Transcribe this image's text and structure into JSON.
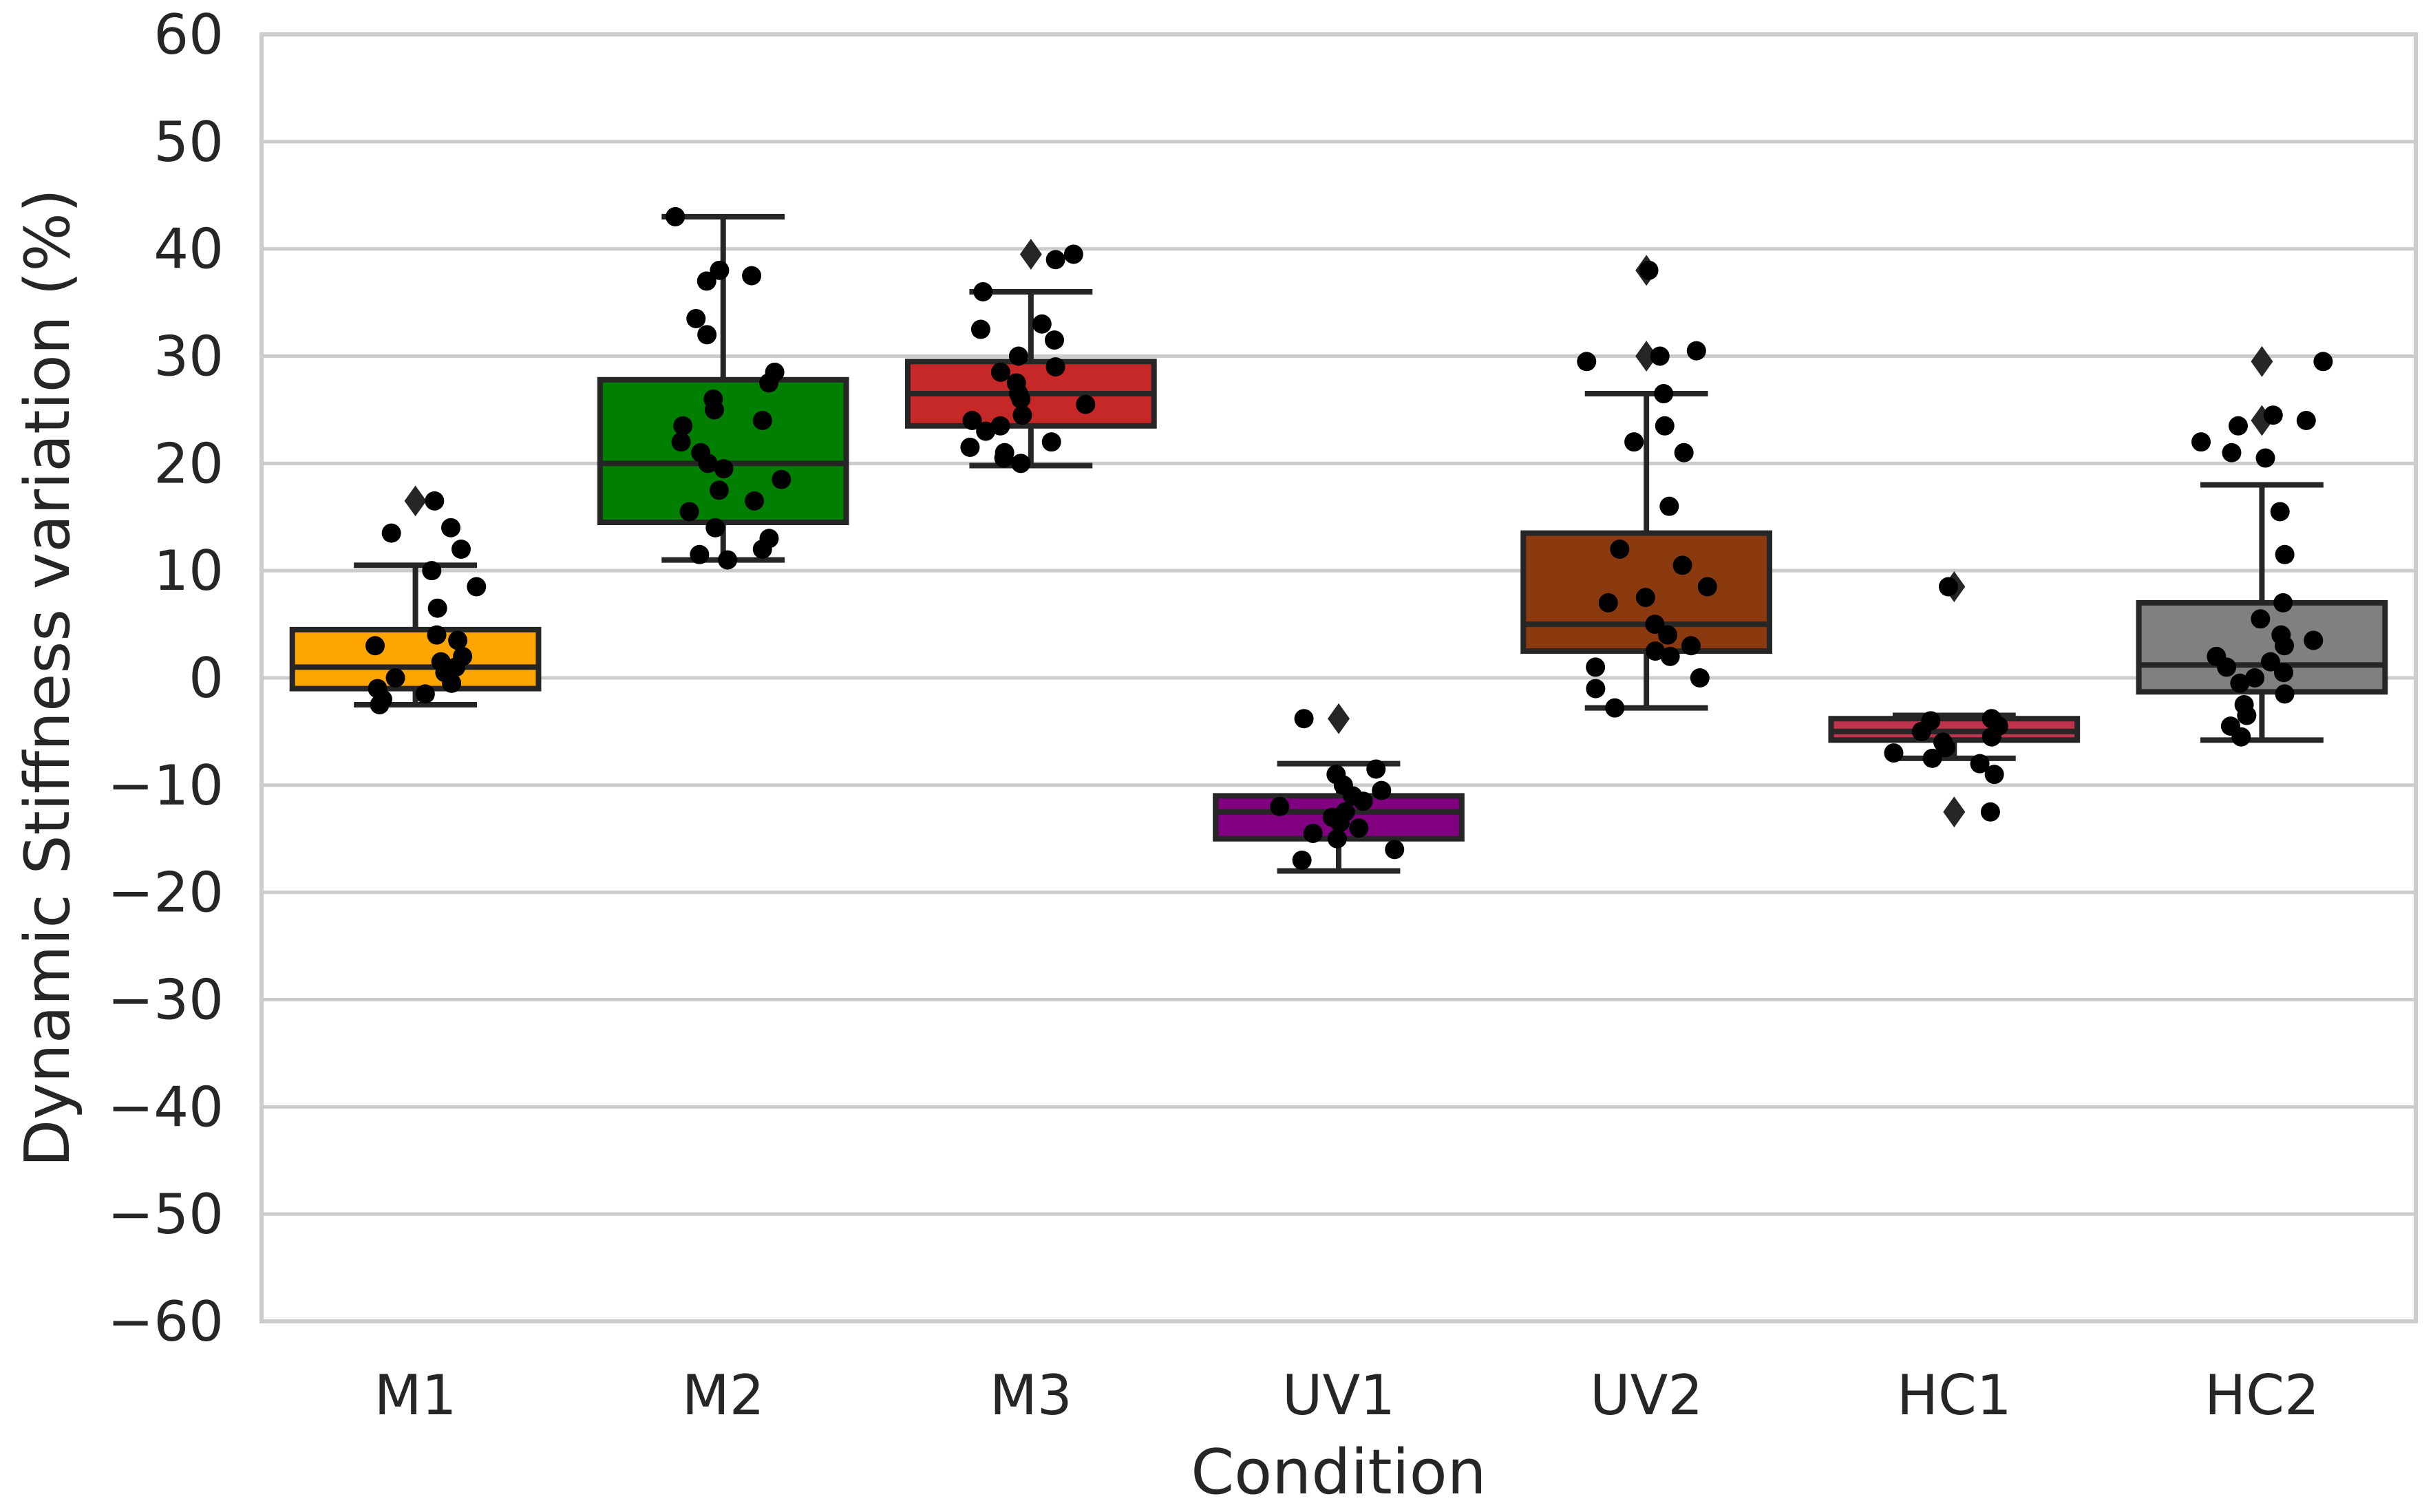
{
  "chart_data": {
    "type": "boxplot",
    "title": "",
    "xlabel": "Condition",
    "ylabel": "Dynamic Stiffness variation (%)",
    "ylim": [
      -60,
      60
    ],
    "yticks": [
      -60,
      -50,
      -40,
      -30,
      -20,
      -10,
      0,
      10,
      20,
      30,
      40,
      50,
      60
    ],
    "ytick_labels": [
      "−60",
      "−50",
      "−40",
      "−30",
      "−20",
      "−10",
      "0",
      "10",
      "20",
      "30",
      "40",
      "50",
      "60"
    ],
    "grid": true,
    "categories": [
      "M1",
      "M2",
      "M3",
      "UV1",
      "UV2",
      "HC1",
      "HC2"
    ],
    "boxes": [
      {
        "name": "M1",
        "color": "#FFA500",
        "whislo": -2.5,
        "q1": -1,
        "median": 1,
        "q3": 4.5,
        "whishi": 10.5,
        "fliers": [
          16.5
        ]
      },
      {
        "name": "M2",
        "color": "#007F00",
        "whislo": 11,
        "q1": 14.5,
        "median": 20,
        "q3": 27.8,
        "whishi": 43,
        "fliers": []
      },
      {
        "name": "M3",
        "color": "#C62828",
        "whislo": 19.8,
        "q1": 23.5,
        "median": 26.5,
        "q3": 29.5,
        "whishi": 36,
        "fliers": [
          39.5
        ]
      },
      {
        "name": "UV1",
        "color": "#800080",
        "whislo": -18,
        "q1": -15,
        "median": -12.5,
        "q3": -11,
        "whishi": -8,
        "fliers": [
          -3.8
        ]
      },
      {
        "name": "UV2",
        "color": "#8B3A0F",
        "whislo": -2.8,
        "q1": 2.5,
        "median": 5,
        "q3": 13.5,
        "whishi": 26.5,
        "fliers": [
          30,
          38
        ]
      },
      {
        "name": "HC1",
        "color": "#C0334D",
        "whislo": -7.5,
        "q1": -5.8,
        "median": -5,
        "q3": -3.8,
        "whishi": -3.5,
        "fliers": [
          8.5,
          -12.5
        ]
      },
      {
        "name": "HC2",
        "color": "#808080",
        "whislo": -5.8,
        "q1": -1.3,
        "median": 1.2,
        "q3": 7,
        "whishi": 18,
        "fliers": [
          24,
          29.5
        ]
      }
    ],
    "points": [
      [
        16.5,
        13.5,
        10,
        8.5,
        6.5,
        4,
        3,
        2,
        1.5,
        1,
        0.5,
        0,
        -0.5,
        -1,
        -1.5,
        -2,
        -2.5,
        14,
        12,
        3.5
      ],
      [
        43,
        38,
        37.5,
        37,
        33.5,
        32,
        28.5,
        27.5,
        26,
        25,
        24,
        23.5,
        22,
        21,
        20,
        19.5,
        18.5,
        17.5,
        16.5,
        15.5,
        14,
        13,
        12,
        11.5,
        11
      ],
      [
        39.5,
        39,
        36,
        33,
        32.5,
        31.5,
        30,
        29,
        28.5,
        27.5,
        26.5,
        26,
        25.5,
        24.5,
        24,
        23.5,
        23,
        22,
        21.5,
        21,
        20.5,
        20
      ],
      [
        -3.8,
        -8.5,
        -9,
        -10,
        -10.5,
        -11,
        -11.5,
        -12,
        -12.5,
        -13,
        -13.5,
        -14,
        -14.5,
        -15,
        -16,
        -17
      ],
      [
        38,
        30.5,
        30,
        29.5,
        26.5,
        23.5,
        22,
        21,
        16,
        12,
        10.5,
        8.5,
        7.5,
        7,
        5,
        4,
        3,
        2.5,
        2,
        1,
        0,
        -1,
        -2.8
      ],
      [
        8.5,
        -3.8,
        -4,
        -4.5,
        -5,
        -5.5,
        -6,
        -6.5,
        -7,
        -7.5,
        -8,
        -9,
        -12.5
      ],
      [
        29.5,
        24.5,
        24,
        23.5,
        22,
        21,
        20.5,
        15.5,
        11.5,
        7,
        5.5,
        4,
        3.5,
        3,
        2,
        1.5,
        1,
        0.5,
        0,
        -0.5,
        -1.5,
        -2.5,
        -3.5,
        -4.5,
        -5.5
      ]
    ]
  }
}
